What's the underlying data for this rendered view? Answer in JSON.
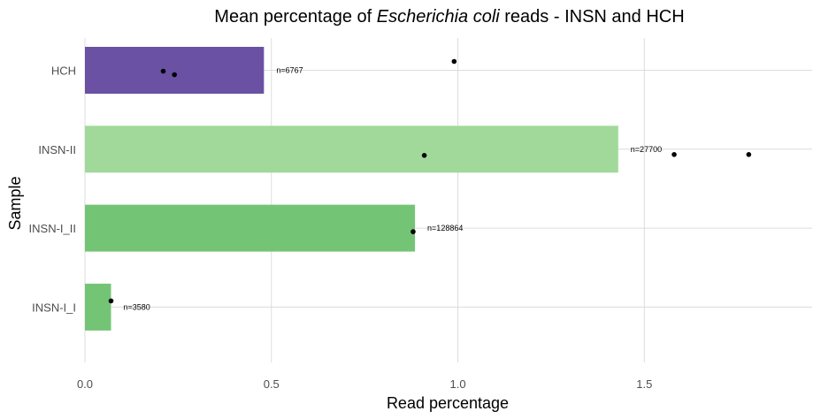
{
  "chart_data": {
    "type": "bar",
    "orientation": "horizontal",
    "title": {
      "prefix": "Mean percentage of ",
      "italic": "Escherichia coli",
      "suffix": " reads - INSN and HCH"
    },
    "xlabel": "Read percentage",
    "ylabel": "Sample",
    "xlim": [
      0,
      1.95
    ],
    "x_ticks": [
      {
        "value": 0.0,
        "label": "0.0"
      },
      {
        "value": 0.5,
        "label": "0.5"
      },
      {
        "value": 1.0,
        "label": "1.0"
      },
      {
        "value": 1.5,
        "label": "1.5"
      }
    ],
    "grid": true,
    "legend": "none",
    "categories": [
      "HCH",
      "INSN-II",
      "INSN-I_II",
      "INSN-I_I"
    ],
    "bars": [
      {
        "category": "HCH",
        "value": 0.48,
        "color": "#6a51a3",
        "n_label": "n=6767",
        "points": [
          0.21,
          0.24,
          0.99
        ]
      },
      {
        "category": "INSN-II",
        "value": 1.43,
        "color": "#a1d99b",
        "n_label": "n=27700",
        "points": [
          0.91,
          1.58,
          1.78
        ]
      },
      {
        "category": "INSN-I_II",
        "value": 0.885,
        "color": "#74c476",
        "n_label": "n=128864",
        "points": [
          0.88
        ]
      },
      {
        "category": "INSN-I_I",
        "value": 0.07,
        "color": "#74c476",
        "n_label": "n=3580",
        "points": [
          0.07
        ]
      }
    ]
  }
}
